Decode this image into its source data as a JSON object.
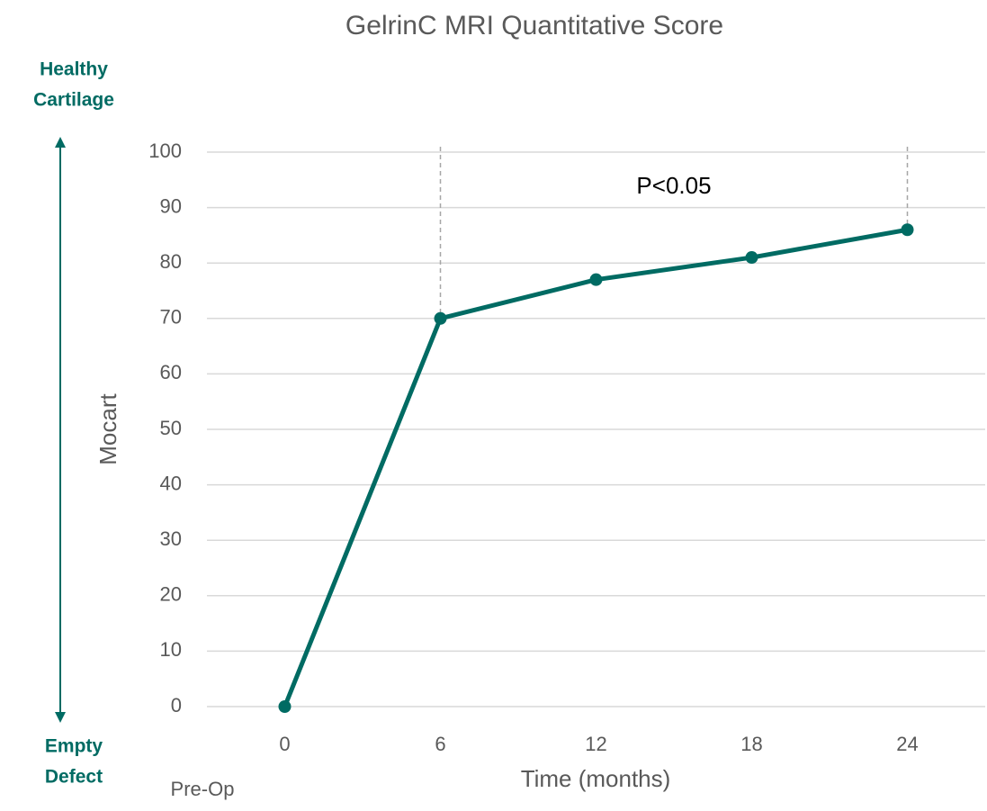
{
  "chart_data": {
    "type": "line",
    "title": "GelrinC MRI Quantitative Score",
    "x_label": "Time (months)",
    "y_label": "Mocart",
    "x": [
      0,
      6,
      12,
      18,
      24
    ],
    "series": [
      {
        "name": "Mocart",
        "color": "#006b63",
        "values": [
          0,
          70,
          77,
          81,
          86
        ]
      }
    ],
    "xlim": [
      -3,
      27
    ],
    "xticks": [
      0,
      6,
      12,
      18,
      24
    ],
    "ylim": [
      0,
      100
    ],
    "yticks": [
      0,
      10,
      20,
      30,
      40,
      50,
      60,
      70,
      80,
      90,
      100
    ],
    "grid": true,
    "significance_bracket": {
      "label": "P<0.05",
      "x": [
        6,
        24
      ]
    },
    "top_label": [
      "Healthy",
      "Cartilage"
    ],
    "bottom_label": [
      "Empty",
      "Defect"
    ],
    "baseline_label": "Pre-Op"
  }
}
